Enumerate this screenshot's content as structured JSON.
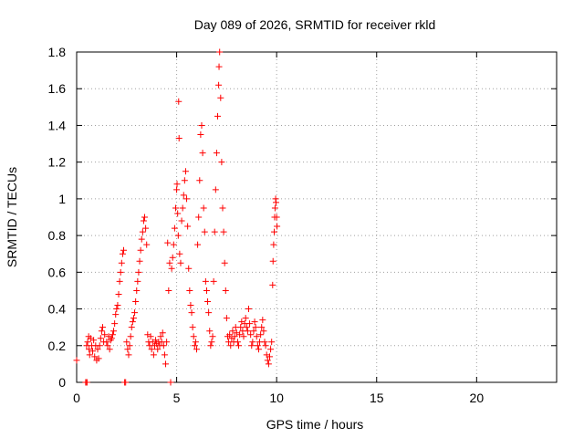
{
  "chart_data": {
    "type": "scatter",
    "title": "Day 089 of 2026, SRMTID for receiver rkld",
    "xlabel": "GPS time / hours",
    "ylabel": "SRMTID / TECUs",
    "xlim": [
      0,
      24
    ],
    "ylim": [
      0,
      1.8
    ],
    "xticks": [
      0,
      5,
      10,
      15,
      20
    ],
    "xtick_labels": [
      "0",
      "5",
      "10",
      "15",
      "20"
    ],
    "yticks": [
      0,
      0.2,
      0.4,
      0.6,
      0.8,
      1.0,
      1.2,
      1.4,
      1.6,
      1.8
    ],
    "ytick_labels": [
      "0",
      "0.2",
      "0.4",
      "0.6",
      "0.8",
      "1",
      "1.2",
      "1.4",
      "1.6",
      "1.8"
    ],
    "grid": true,
    "marker": "+",
    "color": "#ff0000",
    "series": [
      {
        "name": "SRMTID",
        "points": [
          [
            0.0,
            0.12
          ],
          [
            0.45,
            0.0
          ],
          [
            0.5,
            0.0
          ],
          [
            0.52,
            0.0
          ],
          [
            0.5,
            0.2
          ],
          [
            0.55,
            0.22
          ],
          [
            0.6,
            0.25
          ],
          [
            0.62,
            0.18
          ],
          [
            0.65,
            0.15
          ],
          [
            0.7,
            0.24
          ],
          [
            0.75,
            0.2
          ],
          [
            0.8,
            0.17
          ],
          [
            0.85,
            0.23
          ],
          [
            0.9,
            0.14
          ],
          [
            0.95,
            0.2
          ],
          [
            1.0,
            0.12
          ],
          [
            1.05,
            0.18
          ],
          [
            1.1,
            0.13
          ],
          [
            1.15,
            0.2
          ],
          [
            1.2,
            0.24
          ],
          [
            1.25,
            0.28
          ],
          [
            1.3,
            0.3
          ],
          [
            1.35,
            0.22
          ],
          [
            1.4,
            0.26
          ],
          [
            1.5,
            0.22
          ],
          [
            1.55,
            0.2
          ],
          [
            1.6,
            0.25
          ],
          [
            1.65,
            0.18
          ],
          [
            1.7,
            0.23
          ],
          [
            1.75,
            0.24
          ],
          [
            1.8,
            0.26
          ],
          [
            1.85,
            0.28
          ],
          [
            1.9,
            0.32
          ],
          [
            1.95,
            0.37
          ],
          [
            2.0,
            0.4
          ],
          [
            2.05,
            0.42
          ],
          [
            2.1,
            0.48
          ],
          [
            2.15,
            0.55
          ],
          [
            2.2,
            0.6
          ],
          [
            2.25,
            0.65
          ],
          [
            2.3,
            0.7
          ],
          [
            2.35,
            0.72
          ],
          [
            2.4,
            0.0
          ],
          [
            2.45,
            0.0
          ],
          [
            2.5,
            0.22
          ],
          [
            2.55,
            0.18
          ],
          [
            2.6,
            0.15
          ],
          [
            2.65,
            0.2
          ],
          [
            2.7,
            0.25
          ],
          [
            2.75,
            0.3
          ],
          [
            2.8,
            0.33
          ],
          [
            2.85,
            0.35
          ],
          [
            2.9,
            0.38
          ],
          [
            2.95,
            0.44
          ],
          [
            3.0,
            0.5
          ],
          [
            3.05,
            0.55
          ],
          [
            3.1,
            0.6
          ],
          [
            3.15,
            0.66
          ],
          [
            3.2,
            0.72
          ],
          [
            3.25,
            0.78
          ],
          [
            3.3,
            0.82
          ],
          [
            3.35,
            0.88
          ],
          [
            3.4,
            0.9
          ],
          [
            3.45,
            0.84
          ],
          [
            3.5,
            0.75
          ],
          [
            3.55,
            0.26
          ],
          [
            3.6,
            0.22
          ],
          [
            3.65,
            0.2
          ],
          [
            3.7,
            0.25
          ],
          [
            3.75,
            0.18
          ],
          [
            3.8,
            0.22
          ],
          [
            3.85,
            0.15
          ],
          [
            3.9,
            0.2
          ],
          [
            3.95,
            0.23
          ],
          [
            4.0,
            0.21
          ],
          [
            4.05,
            0.18
          ],
          [
            4.1,
            0.22
          ],
          [
            4.15,
            0.2
          ],
          [
            4.2,
            0.25
          ],
          [
            4.25,
            0.22
          ],
          [
            4.3,
            0.27
          ],
          [
            4.35,
            0.2
          ],
          [
            4.4,
            0.15
          ],
          [
            4.45,
            0.1
          ],
          [
            4.5,
            0.22
          ],
          [
            4.55,
            0.76
          ],
          [
            4.6,
            0.5
          ],
          [
            4.65,
            0.65
          ],
          [
            4.7,
            0.0
          ],
          [
            4.75,
            0.62
          ],
          [
            4.8,
            0.68
          ],
          [
            4.85,
            0.75
          ],
          [
            4.9,
            0.84
          ],
          [
            4.95,
            0.95
          ],
          [
            5.0,
            1.05
          ],
          [
            5.02,
            1.08
          ],
          [
            5.05,
            0.92
          ],
          [
            5.08,
            0.8
          ],
          [
            5.1,
            1.53
          ],
          [
            5.12,
            1.33
          ],
          [
            5.15,
            0.7
          ],
          [
            5.2,
            0.65
          ],
          [
            5.25,
            0.88
          ],
          [
            5.3,
            0.95
          ],
          [
            5.35,
            1.02
          ],
          [
            5.4,
            1.1
          ],
          [
            5.45,
            1.15
          ],
          [
            5.5,
            1.0
          ],
          [
            5.55,
            0.85
          ],
          [
            5.6,
            0.62
          ],
          [
            5.65,
            0.5
          ],
          [
            5.7,
            0.42
          ],
          [
            5.75,
            0.38
          ],
          [
            5.8,
            0.3
          ],
          [
            5.85,
            0.25
          ],
          [
            5.9,
            0.2
          ],
          [
            5.95,
            0.22
          ],
          [
            6.0,
            0.18
          ],
          [
            6.05,
            0.75
          ],
          [
            6.1,
            0.9
          ],
          [
            6.15,
            1.1
          ],
          [
            6.2,
            1.35
          ],
          [
            6.25,
            1.4
          ],
          [
            6.3,
            1.25
          ],
          [
            6.35,
            0.95
          ],
          [
            6.4,
            0.82
          ],
          [
            6.45,
            0.55
          ],
          [
            6.5,
            0.5
          ],
          [
            6.55,
            0.44
          ],
          [
            6.6,
            0.38
          ],
          [
            6.65,
            0.28
          ],
          [
            6.7,
            0.2
          ],
          [
            6.75,
            0.22
          ],
          [
            6.8,
            0.25
          ],
          [
            6.85,
            0.55
          ],
          [
            6.9,
            0.82
          ],
          [
            6.95,
            1.05
          ],
          [
            7.0,
            1.25
          ],
          [
            7.05,
            1.45
          ],
          [
            7.1,
            1.62
          ],
          [
            7.12,
            1.72
          ],
          [
            7.15,
            1.8
          ],
          [
            7.2,
            1.55
          ],
          [
            7.25,
            1.2
          ],
          [
            7.3,
            0.95
          ],
          [
            7.35,
            0.82
          ],
          [
            7.4,
            0.65
          ],
          [
            7.45,
            0.5
          ],
          [
            7.5,
            0.35
          ],
          [
            7.55,
            0.25
          ],
          [
            7.6,
            0.22
          ],
          [
            7.65,
            0.26
          ],
          [
            7.7,
            0.2
          ],
          [
            7.75,
            0.24
          ],
          [
            7.8,
            0.28
          ],
          [
            7.85,
            0.22
          ],
          [
            7.9,
            0.25
          ],
          [
            7.95,
            0.3
          ],
          [
            8.0,
            0.27
          ],
          [
            8.05,
            0.22
          ],
          [
            8.1,
            0.2
          ],
          [
            8.15,
            0.26
          ],
          [
            8.2,
            0.3
          ],
          [
            8.25,
            0.33
          ],
          [
            8.3,
            0.28
          ],
          [
            8.35,
            0.25
          ],
          [
            8.4,
            0.32
          ],
          [
            8.45,
            0.35
          ],
          [
            8.5,
            0.3
          ],
          [
            8.55,
            0.28
          ],
          [
            8.6,
            0.4
          ],
          [
            8.65,
            0.32
          ],
          [
            8.7,
            0.26
          ],
          [
            8.75,
            0.2
          ],
          [
            8.8,
            0.22
          ],
          [
            8.85,
            0.28
          ],
          [
            8.9,
            0.33
          ],
          [
            8.95,
            0.3
          ],
          [
            9.0,
            0.25
          ],
          [
            9.05,
            0.2
          ],
          [
            9.1,
            0.18
          ],
          [
            9.15,
            0.22
          ],
          [
            9.2,
            0.26
          ],
          [
            9.25,
            0.3
          ],
          [
            9.3,
            0.34
          ],
          [
            9.35,
            0.28
          ],
          [
            9.4,
            0.22
          ],
          [
            9.45,
            0.2
          ],
          [
            9.5,
            0.15
          ],
          [
            9.55,
            0.12
          ],
          [
            9.6,
            0.1
          ],
          [
            9.65,
            0.14
          ],
          [
            9.7,
            0.18
          ],
          [
            9.75,
            0.22
          ],
          [
            9.8,
            0.53
          ],
          [
            9.82,
            0.66
          ],
          [
            9.85,
            0.75
          ],
          [
            9.88,
            0.82
          ],
          [
            9.9,
            0.9
          ],
          [
            9.92,
            0.95
          ],
          [
            9.95,
            1.0
          ],
          [
            9.97,
            0.98
          ],
          [
            10.0,
            0.9
          ],
          [
            10.02,
            0.85
          ]
        ]
      }
    ]
  }
}
